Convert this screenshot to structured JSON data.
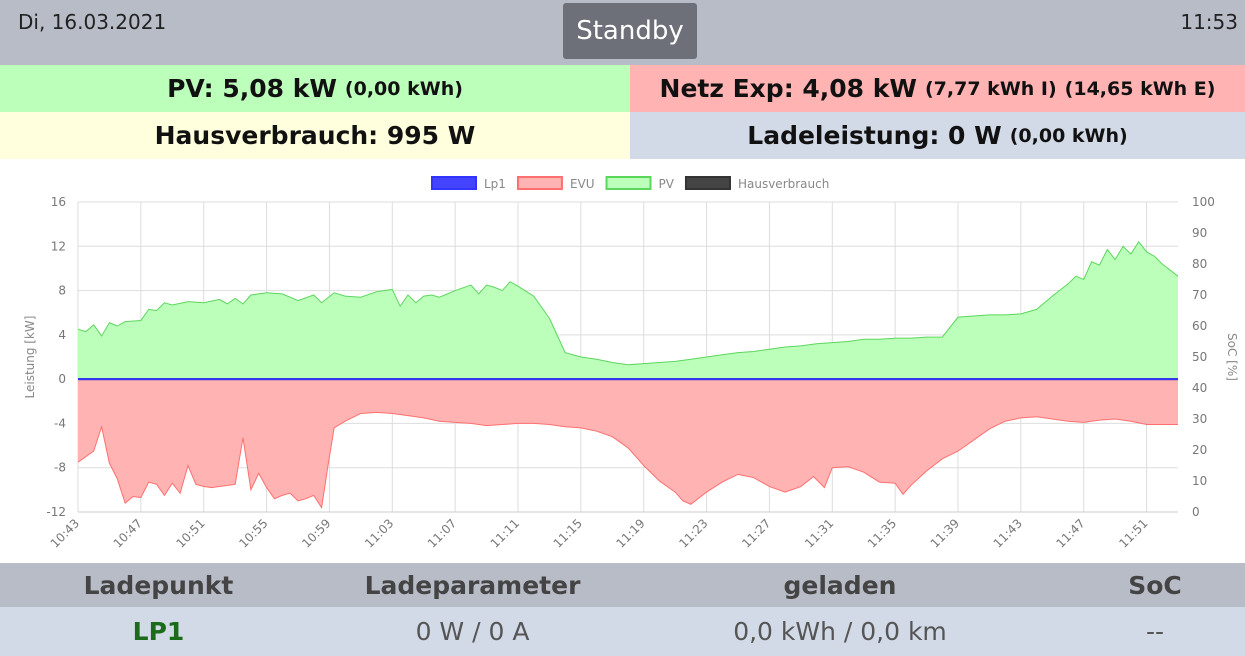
{
  "header": {
    "date": "Di, 16.03.2021",
    "time": "11:53",
    "mode_button": "Standby"
  },
  "summary": {
    "pv_main": "PV: 5,08 kW",
    "pv_energy": "(0,00 kWh)",
    "netz_main": "Netz Exp: 4,08 kW",
    "netz_import": "(7,77 kWh I)",
    "netz_export": "(14,65 kWh E)",
    "haus_main": "Hausverbrauch: 995 W",
    "lade_main": "Ladeleistung: 0 W",
    "lade_energy": "(0,00 kWh)"
  },
  "chart_data": {
    "type": "area",
    "xlabel": "",
    "ylabel": "Leistung [kW]",
    "y2label": "SoC [%]",
    "ylim": [
      -12,
      16
    ],
    "yticks": [
      -12,
      -8,
      -4,
      0,
      4,
      8,
      12,
      16
    ],
    "y2lim": [
      0,
      100
    ],
    "y2ticks": [
      0,
      10,
      20,
      30,
      40,
      50,
      60,
      70,
      80,
      90,
      100
    ],
    "x_ticks": [
      "10:43",
      "10:47",
      "10:51",
      "10:55",
      "10:59",
      "11:03",
      "11:07",
      "11:11",
      "11:15",
      "11:19",
      "11:23",
      "11:27",
      "11:31",
      "11:35",
      "11:39",
      "11:43",
      "11:47",
      "11:51"
    ],
    "x_start": "10:43",
    "x_end": "11:53",
    "grid": true,
    "legend_position": "top",
    "series": [
      {
        "name": "Lp1",
        "color": "#3333ff",
        "fill": "#4444ff",
        "points": [
          [
            0,
            0
          ],
          [
            70,
            0
          ]
        ]
      },
      {
        "name": "EVU",
        "color": "#ff6f6f",
        "fill": "#ffb3b3",
        "points": [
          [
            0,
            -7.5
          ],
          [
            1,
            -6.5
          ],
          [
            1.5,
            -4.3
          ],
          [
            2,
            -7.6
          ],
          [
            2.5,
            -9
          ],
          [
            3,
            -11.2
          ],
          [
            3.5,
            -10.6
          ],
          [
            4,
            -10.7
          ],
          [
            4.5,
            -9.3
          ],
          [
            5,
            -9.5
          ],
          [
            5.5,
            -10.5
          ],
          [
            6,
            -9.4
          ],
          [
            6.5,
            -10.3
          ],
          [
            7,
            -7.8
          ],
          [
            7.5,
            -9.5
          ],
          [
            8,
            -9.7
          ],
          [
            8.5,
            -9.8
          ],
          [
            9,
            -9.7
          ],
          [
            10,
            -9.5
          ],
          [
            10.5,
            -5.3
          ],
          [
            11,
            -10
          ],
          [
            11.5,
            -8.5
          ],
          [
            12,
            -9.8
          ],
          [
            12.5,
            -10.8
          ],
          [
            13,
            -10.5
          ],
          [
            13.5,
            -10.3
          ],
          [
            14,
            -11
          ],
          [
            14.5,
            -10.8
          ],
          [
            15,
            -10.5
          ],
          [
            15.5,
            -11.6
          ],
          [
            15.9,
            -7.9
          ],
          [
            16.3,
            -4.4
          ],
          [
            17,
            -3.8
          ],
          [
            18,
            -3.1
          ],
          [
            19,
            -3
          ],
          [
            20,
            -3.1
          ],
          [
            21,
            -3.3
          ],
          [
            22,
            -3.5
          ],
          [
            23,
            -3.8
          ],
          [
            24,
            -3.9
          ],
          [
            25,
            -4
          ],
          [
            26,
            -4.2
          ],
          [
            27,
            -4.1
          ],
          [
            28,
            -4.0
          ],
          [
            29,
            -4.0
          ],
          [
            30,
            -4.1
          ],
          [
            31,
            -4.3
          ],
          [
            32,
            -4.4
          ],
          [
            33,
            -4.7
          ],
          [
            34,
            -5.2
          ],
          [
            35,
            -6.2
          ],
          [
            36,
            -7.8
          ],
          [
            37,
            -9.2
          ],
          [
            38,
            -10.2
          ],
          [
            38.5,
            -11
          ],
          [
            39,
            -11.3
          ],
          [
            40,
            -10.2
          ],
          [
            41,
            -9.3
          ],
          [
            42,
            -8.6
          ],
          [
            43,
            -8.9
          ],
          [
            44,
            -9.7
          ],
          [
            45,
            -10.2
          ],
          [
            46,
            -9.7
          ],
          [
            46.8,
            -8.8
          ],
          [
            47.5,
            -9.8
          ],
          [
            48,
            -8
          ],
          [
            49,
            -7.9
          ],
          [
            50,
            -8.4
          ],
          [
            51,
            -9.3
          ],
          [
            52,
            -9.4
          ],
          [
            52.5,
            -10.4
          ],
          [
            53,
            -9.6
          ],
          [
            54,
            -8.3
          ],
          [
            55,
            -7.2
          ],
          [
            56,
            -6.5
          ],
          [
            57,
            -5.5
          ],
          [
            58,
            -4.5
          ],
          [
            59,
            -3.8
          ],
          [
            60,
            -3.5
          ],
          [
            61,
            -3.4
          ],
          [
            62,
            -3.6
          ],
          [
            63,
            -3.8
          ],
          [
            64,
            -3.9
          ],
          [
            65,
            -3.7
          ],
          [
            66,
            -3.6
          ],
          [
            67,
            -3.8
          ],
          [
            68,
            -4.1
          ],
          [
            70,
            -4.1
          ]
        ]
      },
      {
        "name": "PV",
        "color": "#5cd65c",
        "fill": "#bbffbb",
        "points": [
          [
            0,
            4.5
          ],
          [
            0.5,
            4.3
          ],
          [
            1,
            4.9
          ],
          [
            1.5,
            3.9
          ],
          [
            2,
            5.1
          ],
          [
            2.5,
            4.8
          ],
          [
            3,
            5.2
          ],
          [
            4,
            5.3
          ],
          [
            4.5,
            6.3
          ],
          [
            5,
            6.2
          ],
          [
            5.5,
            6.9
          ],
          [
            6,
            6.7
          ],
          [
            7,
            7.0
          ],
          [
            8,
            6.9
          ],
          [
            9,
            7.2
          ],
          [
            9.5,
            6.8
          ],
          [
            10,
            7.3
          ],
          [
            10.5,
            6.8
          ],
          [
            11,
            7.6
          ],
          [
            12,
            7.8
          ],
          [
            13,
            7.7
          ],
          [
            14,
            7.1
          ],
          [
            15,
            7.6
          ],
          [
            15.5,
            6.9
          ],
          [
            16.3,
            7.8
          ],
          [
            17,
            7.5
          ],
          [
            18,
            7.4
          ],
          [
            19,
            7.9
          ],
          [
            20,
            8.1
          ],
          [
            20.5,
            6.6
          ],
          [
            21,
            7.6
          ],
          [
            21.5,
            6.9
          ],
          [
            22,
            7.5
          ],
          [
            22.5,
            7.6
          ],
          [
            23,
            7.4
          ],
          [
            24,
            8.0
          ],
          [
            25,
            8.5
          ],
          [
            25.5,
            7.7
          ],
          [
            26,
            8.5
          ],
          [
            26.5,
            8.3
          ],
          [
            27,
            8.0
          ],
          [
            27.5,
            8.8
          ],
          [
            28,
            8.4
          ],
          [
            29,
            7.5
          ],
          [
            30,
            5.5
          ],
          [
            31,
            2.4
          ],
          [
            32,
            2
          ],
          [
            33,
            1.8
          ],
          [
            34,
            1.5
          ],
          [
            35,
            1.3
          ],
          [
            36,
            1.4
          ],
          [
            37,
            1.5
          ],
          [
            38,
            1.6
          ],
          [
            39,
            1.8
          ],
          [
            40,
            2.0
          ],
          [
            41,
            2.2
          ],
          [
            42,
            2.4
          ],
          [
            43,
            2.5
          ],
          [
            44,
            2.7
          ],
          [
            45,
            2.9
          ],
          [
            46,
            3.0
          ],
          [
            47,
            3.2
          ],
          [
            48,
            3.3
          ],
          [
            49,
            3.4
          ],
          [
            50,
            3.6
          ],
          [
            51,
            3.6
          ],
          [
            52,
            3.7
          ],
          [
            53,
            3.7
          ],
          [
            54,
            3.8
          ],
          [
            55,
            3.8
          ],
          [
            56,
            5.6
          ],
          [
            57,
            5.7
          ],
          [
            58,
            5.8
          ],
          [
            59,
            5.8
          ],
          [
            60,
            5.9
          ],
          [
            61,
            6.3
          ],
          [
            62,
            7.5
          ],
          [
            63,
            8.6
          ],
          [
            63.5,
            9.3
          ],
          [
            64,
            9.0
          ],
          [
            64.5,
            10.6
          ],
          [
            65,
            10.3
          ],
          [
            65.5,
            11.7
          ],
          [
            66,
            10.8
          ],
          [
            66.5,
            12.0
          ],
          [
            67,
            11.3
          ],
          [
            67.5,
            12.4
          ],
          [
            68,
            11.5
          ],
          [
            68.5,
            11.1
          ],
          [
            69,
            10.4
          ],
          [
            70,
            9.3
          ]
        ]
      },
      {
        "name": "Hausverbrauch",
        "color": "#333333",
        "fill": "#444444",
        "points": [
          [
            0,
            0
          ],
          [
            70,
            0
          ]
        ]
      }
    ]
  },
  "table": {
    "headers": [
      "Ladepunkt",
      "Ladeparameter",
      "geladen",
      "SoC"
    ],
    "rows": [
      {
        "ladepunkt": "LP1",
        "parameter": "0 W / 0 A",
        "geladen": "0,0 kWh / 0,0 km",
        "soc": "--"
      }
    ]
  }
}
